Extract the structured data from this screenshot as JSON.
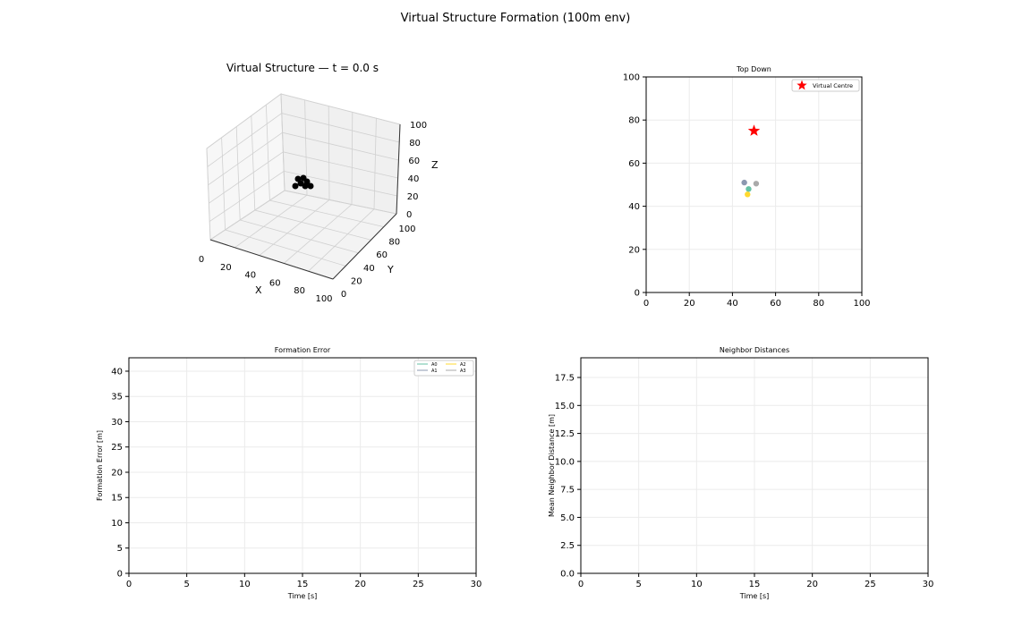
{
  "suptitle": "Virtual Structure Formation (100m env)",
  "chart_data": [
    {
      "type": "scatter3d",
      "title": "Virtual Structure — t = 0.0 s",
      "xlabel": "X",
      "ylabel": "Y",
      "zlabel": "Z",
      "xlim": [
        0,
        100
      ],
      "ylim": [
        0,
        100
      ],
      "zlim": [
        0,
        100
      ],
      "xticks": [
        "0",
        "20",
        "40",
        "60",
        "80",
        "100"
      ],
      "yticks": [
        "0",
        "20",
        "40",
        "60",
        "80",
        "100"
      ],
      "zticks": [
        "0",
        "20",
        "40",
        "60",
        "80",
        "100"
      ],
      "marker_color": "#000000",
      "grid": true
    },
    {
      "type": "scatter",
      "title": "Top Down",
      "xlim": [
        0,
        100
      ],
      "ylim": [
        0,
        100
      ],
      "xticks": [
        "0",
        "20",
        "40",
        "60",
        "80",
        "100"
      ],
      "yticks": [
        "0",
        "20",
        "40",
        "60",
        "80",
        "100"
      ],
      "grid": true,
      "legend": {
        "position": "top-right",
        "entries": [
          {
            "label": "Virtual Centre",
            "color": "#ff0000",
            "marker": "star"
          }
        ]
      },
      "virtual_centre": {
        "x": 50,
        "y": 75
      },
      "points": [
        {
          "x": 45.5,
          "y": 51,
          "color": "#8c98b0"
        },
        {
          "x": 51,
          "y": 50.5,
          "color": "#aaaaaa"
        },
        {
          "x": 47.5,
          "y": 48,
          "color": "#66c2a5"
        },
        {
          "x": 47,
          "y": 45.5,
          "color": "#ffd92f"
        }
      ]
    },
    {
      "type": "line",
      "title": "Formation Error",
      "xlabel": "Time [s]",
      "ylabel": "Formation Error [m]",
      "xlim": [
        0,
        30
      ],
      "ylim": [
        0,
        42.65
      ],
      "xticks": [
        "0",
        "5",
        "10",
        "15",
        "20",
        "25",
        "30"
      ],
      "yticks": [
        "0",
        "5",
        "10",
        "15",
        "20",
        "25",
        "30",
        "35",
        "40"
      ],
      "grid": true,
      "legend": {
        "position": "top-right",
        "entries": [
          {
            "label": "A0",
            "color": "#66c2a5"
          },
          {
            "label": "A1",
            "color": "#8c98b0"
          },
          {
            "label": "A2",
            "color": "#ffd92f"
          },
          {
            "label": "A3",
            "color": "#aaaaaa"
          }
        ]
      },
      "series": []
    },
    {
      "type": "line",
      "title": "Neighbor Distances",
      "xlabel": "Time [s]",
      "ylabel": "Mean Neighbor Distance [m]",
      "xlim": [
        0,
        30
      ],
      "ylim": [
        0,
        19.26
      ],
      "xticks": [
        "0",
        "5",
        "10",
        "15",
        "20",
        "25",
        "30"
      ],
      "yticks": [
        "0.0",
        "2.5",
        "5.0",
        "7.5",
        "10.0",
        "12.5",
        "15.0",
        "17.5"
      ],
      "grid": true,
      "series": []
    }
  ]
}
